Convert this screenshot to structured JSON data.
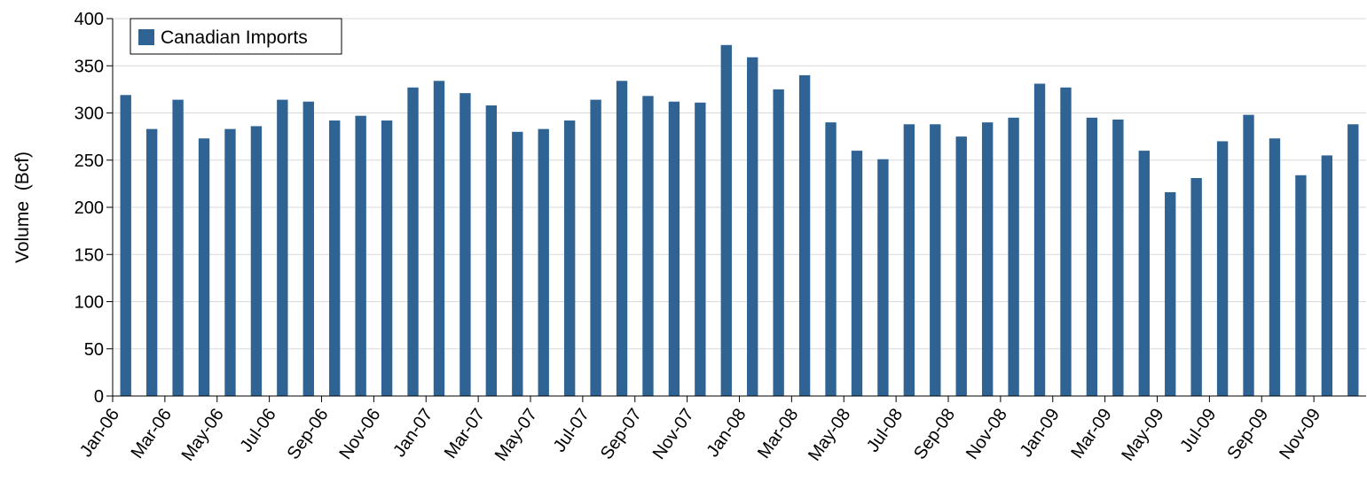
{
  "chart_data": {
    "type": "bar",
    "title": "",
    "xlabel": "",
    "ylabel": "Volume  (Bcf)",
    "ylim": [
      0,
      400
    ],
    "yticks": [
      0,
      50,
      100,
      150,
      200,
      250,
      300,
      350,
      400
    ],
    "grid": true,
    "legend": "top-left",
    "bar_color": "#2E6393",
    "categories": [
      "Jan-06",
      "Feb-06",
      "Mar-06",
      "Apr-06",
      "May-06",
      "Jun-06",
      "Jul-06",
      "Aug-06",
      "Sep-06",
      "Oct-06",
      "Nov-06",
      "Dec-06",
      "Jan-07",
      "Feb-07",
      "Mar-07",
      "Apr-07",
      "May-07",
      "Jun-07",
      "Jul-07",
      "Aug-07",
      "Sep-07",
      "Oct-07",
      "Nov-07",
      "Dec-07",
      "Jan-08",
      "Feb-08",
      "Mar-08",
      "Apr-08",
      "May-08",
      "Jun-08",
      "Jul-08",
      "Aug-08",
      "Sep-08",
      "Oct-08",
      "Nov-08",
      "Dec-08",
      "Jan-09",
      "Feb-09",
      "Mar-09",
      "Apr-09",
      "May-09",
      "Jun-09",
      "Jul-09",
      "Aug-09",
      "Sep-09",
      "Oct-09",
      "Nov-09",
      "Dec-09"
    ],
    "tick_labels": [
      "Jan-06",
      "Mar-06",
      "May-06",
      "Jul-06",
      "Sep-06",
      "Nov-06",
      "Jan-07",
      "Mar-07",
      "May-07",
      "Jul-07",
      "Sep-07",
      "Nov-07",
      "Jan-08",
      "Mar-08",
      "May-08",
      "Jul-08",
      "Sep-08",
      "Nov-08",
      "Jan-09",
      "Mar-09",
      "May-09",
      "Jul-09",
      "Sep-09",
      "Nov-09"
    ],
    "series": [
      {
        "name": "Canadian Imports",
        "values": [
          319,
          283,
          314,
          273,
          283,
          286,
          314,
          312,
          292,
          297,
          292,
          327,
          334,
          321,
          308,
          280,
          283,
          292,
          314,
          334,
          318,
          312,
          311,
          372,
          359,
          325,
          340,
          290,
          260,
          251,
          288,
          288,
          275,
          290,
          295,
          331,
          327,
          295,
          293,
          260,
          216,
          231,
          270,
          298,
          273,
          234,
          255,
          288
        ]
      }
    ]
  }
}
